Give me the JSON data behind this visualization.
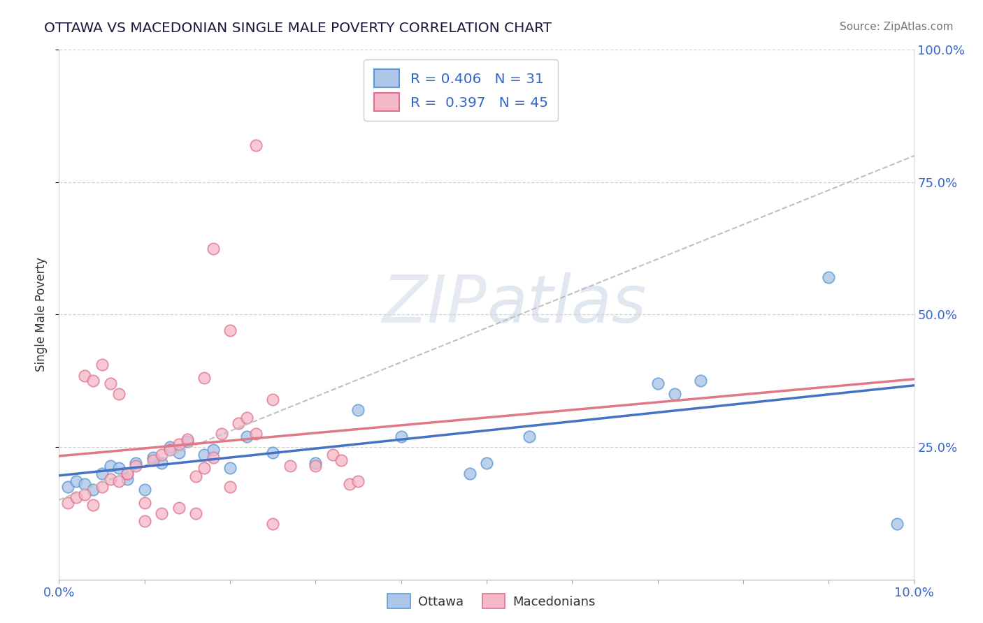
{
  "title": "OTTAWA VS MACEDONIAN SINGLE MALE POVERTY CORRELATION CHART",
  "source": "Source: ZipAtlas.com",
  "ylabel": "Single Male Poverty",
  "ottawa_R": "0.406",
  "ottawa_N": "31",
  "macedonian_R": "0.397",
  "macedonian_N": "45",
  "ottawa_color": "#aec6e8",
  "macedonian_color": "#f5b8c8",
  "ottawa_edge_color": "#5b9bd5",
  "macedonian_edge_color": "#e07090",
  "ottawa_line_color": "#4472c4",
  "macedonian_line_color": "#e07888",
  "dashed_line_color": "#c0c0c0",
  "watermark_text": "ZIPatlas",
  "watermark_color": "#cdd8e8",
  "ottawa_x": [
    0.001,
    0.002,
    0.003,
    0.004,
    0.005,
    0.006,
    0.007,
    0.008,
    0.009,
    0.01,
    0.011,
    0.012,
    0.013,
    0.014,
    0.015,
    0.017,
    0.018,
    0.02,
    0.022,
    0.025,
    0.03,
    0.035,
    0.04,
    0.048,
    0.05,
    0.055,
    0.07,
    0.072,
    0.075,
    0.09,
    0.098
  ],
  "ottawa_y": [
    0.175,
    0.185,
    0.18,
    0.17,
    0.2,
    0.215,
    0.21,
    0.19,
    0.22,
    0.17,
    0.23,
    0.22,
    0.25,
    0.24,
    0.26,
    0.235,
    0.245,
    0.21,
    0.27,
    0.24,
    0.22,
    0.32,
    0.27,
    0.2,
    0.22,
    0.27,
    0.37,
    0.35,
    0.375,
    0.57,
    0.105
  ],
  "macedonian_x": [
    0.001,
    0.002,
    0.003,
    0.004,
    0.005,
    0.006,
    0.007,
    0.008,
    0.009,
    0.01,
    0.011,
    0.012,
    0.013,
    0.014,
    0.015,
    0.016,
    0.017,
    0.018,
    0.019,
    0.02,
    0.021,
    0.022,
    0.023,
    0.025,
    0.027,
    0.03,
    0.032,
    0.033,
    0.034,
    0.035,
    0.003,
    0.004,
    0.005,
    0.006,
    0.007,
    0.008,
    0.01,
    0.012,
    0.014,
    0.016,
    0.017,
    0.018,
    0.02,
    0.023,
    0.025
  ],
  "macedonian_y": [
    0.145,
    0.155,
    0.16,
    0.14,
    0.175,
    0.19,
    0.185,
    0.2,
    0.215,
    0.145,
    0.225,
    0.235,
    0.245,
    0.255,
    0.265,
    0.195,
    0.21,
    0.23,
    0.275,
    0.175,
    0.295,
    0.305,
    0.275,
    0.34,
    0.215,
    0.215,
    0.235,
    0.225,
    0.18,
    0.185,
    0.385,
    0.375,
    0.405,
    0.37,
    0.35,
    0.2,
    0.11,
    0.125,
    0.135,
    0.125,
    0.38,
    0.625,
    0.47,
    0.82,
    0.105
  ],
  "xlim": [
    0.0,
    0.1
  ],
  "ylim": [
    0.0,
    1.0
  ],
  "xtick_show": [
    0.0,
    0.1
  ],
  "ytick_positions": [
    0.25,
    0.5,
    0.75,
    1.0
  ],
  "ytick_labels": [
    "25.0%",
    "50.0%",
    "75.0%",
    "100.0%"
  ]
}
